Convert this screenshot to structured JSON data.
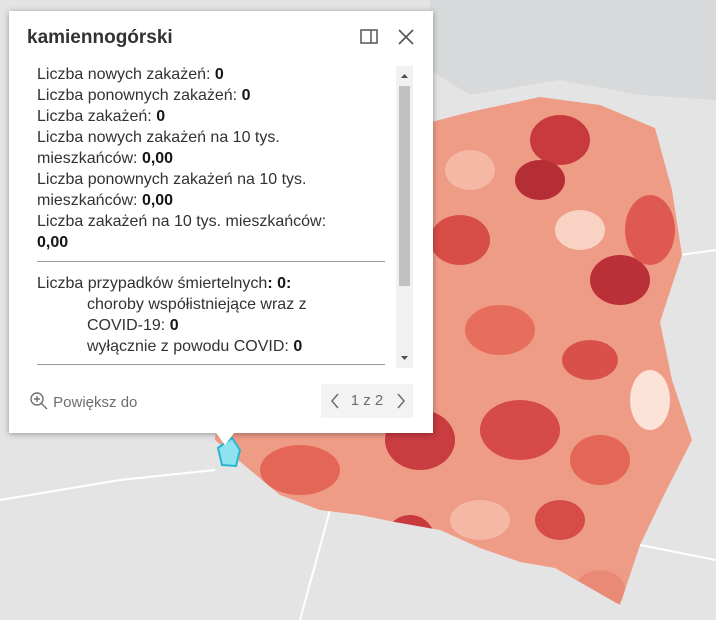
{
  "popup": {
    "title": "kamiennogórski",
    "rows": [
      {
        "label": "Liczba nowych zakażeń:",
        "value": "0"
      },
      {
        "label": "Liczba ponownych zakażeń:",
        "value": "0"
      },
      {
        "label": "Liczba zakażeń:",
        "value": "0"
      },
      {
        "label": "Liczba nowych zakażeń na 10 tys.",
        "label2": "mieszkańców:",
        "value": "0,00"
      },
      {
        "label": "Liczba ponownych zakażeń na 10 tys.",
        "label2": "mieszkańców:",
        "value": "0,00"
      },
      {
        "label": "Liczba zakażeń na 10 tys. mieszkańców:",
        "value": "0,00"
      }
    ],
    "deaths": {
      "label": "Liczba przypadków śmiertelnych",
      "value": ": 0:",
      "comorbid_label": "choroby współistniejące wraz z",
      "comorbid_label2": "COVID-19:",
      "comorbid_value": "0",
      "covid_only_label": "wyłącznie z powodu COVID:",
      "covid_only_value": "0"
    },
    "zoom": "Powiększ do",
    "pager": "1 z 2"
  }
}
